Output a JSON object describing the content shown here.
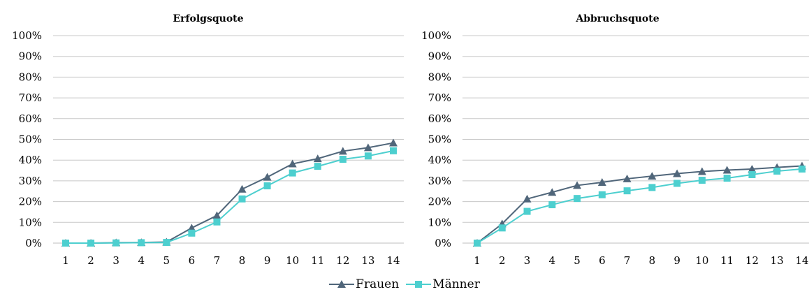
{
  "colors": {
    "frauen": "#50667A",
    "maenner": "#4DCFCF",
    "grid": "#C8C8C8"
  },
  "legend": {
    "series1": "Frauen",
    "series2": "Männer"
  },
  "chart_data": [
    {
      "type": "line",
      "title": "Erfolgsquote",
      "categories": [
        "1",
        "2",
        "3",
        "4",
        "5",
        "6",
        "7",
        "8",
        "9",
        "10",
        "11",
        "12",
        "13",
        "14"
      ],
      "y_ticks": [
        "0%",
        "10%",
        "20%",
        "30%",
        "40%",
        "50%",
        "60%",
        "70%",
        "80%",
        "90%",
        "100%"
      ],
      "ylim": [
        0,
        100
      ],
      "grid": true,
      "legend_position": "bottom",
      "series": [
        {
          "name": "Frauen",
          "marker": "triangle",
          "values": [
            0,
            0,
            0.2,
            0.3,
            0.5,
            7.3,
            13.3,
            26,
            31.8,
            38.2,
            40.7,
            44.3,
            46,
            48.3
          ]
        },
        {
          "name": "Männer",
          "marker": "square",
          "values": [
            0,
            0,
            0.1,
            0.2,
            0.3,
            4.8,
            10.2,
            21.3,
            27.6,
            33.8,
            37,
            40.4,
            42,
            44.5
          ]
        }
      ]
    },
    {
      "type": "line",
      "title": "Abbruchsquote",
      "categories": [
        "1",
        "2",
        "3",
        "4",
        "5",
        "6",
        "7",
        "8",
        "9",
        "10",
        "11",
        "12",
        "13",
        "14"
      ],
      "y_ticks": [
        "0%",
        "10%",
        "20%",
        "30%",
        "40%",
        "50%",
        "60%",
        "70%",
        "80%",
        "90%",
        "100%"
      ],
      "ylim": [
        0,
        100
      ],
      "grid": true,
      "legend_position": "bottom",
      "series": [
        {
          "name": "Frauen",
          "marker": "triangle",
          "values": [
            0,
            9.3,
            21.3,
            24.5,
            27.8,
            29.3,
            31,
            32.3,
            33.5,
            34.5,
            35.2,
            35.7,
            36.5,
            37.2
          ]
        },
        {
          "name": "Männer",
          "marker": "square",
          "values": [
            0,
            7.3,
            15.3,
            18.5,
            21.5,
            23.3,
            25.2,
            26.8,
            28.8,
            30.3,
            31.3,
            33,
            34.7,
            35.7
          ]
        }
      ]
    }
  ]
}
